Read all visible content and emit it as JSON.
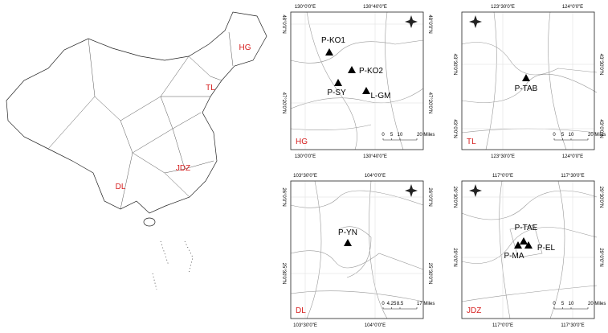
{
  "overview": {
    "labels": [
      "HG",
      "TL",
      "JDZ",
      "DL"
    ]
  },
  "panels": [
    {
      "label": "HG",
      "x_ticks": [
        "130°0'0\"E",
        "130°40'0\"E"
      ],
      "y_ticks": [
        "48°0'0\"N",
        "47°20'0\"N"
      ],
      "sites": [
        "P-KO1",
        "P-KO2",
        "P-SY",
        "L-GM"
      ],
      "scale": [
        "0",
        "5",
        "10",
        "20 Miles"
      ]
    },
    {
      "label": "TL",
      "x_ticks": [
        "123°30'0\"E",
        "124°0'0\"E"
      ],
      "y_ticks": [
        "43°30'0\"N",
        "43°0'0\"N"
      ],
      "sites": [
        "P-TAB"
      ],
      "scale": [
        "0",
        "5",
        "10",
        "20 Miles"
      ]
    },
    {
      "label": "DL",
      "x_ticks": [
        "103°30'0\"E",
        "104°0'0\"E"
      ],
      "y_ticks": [
        "26°0'0\"N",
        "25°30'0\"N"
      ],
      "sites": [
        "P-YN"
      ],
      "scale": [
        "0",
        "4.25",
        "8.5",
        "17 Miles"
      ]
    },
    {
      "label": "JDZ",
      "x_ticks": [
        "117°0'0\"E",
        "117°30'0\"E"
      ],
      "y_ticks": [
        "29°30'0\"N",
        "29°0'0\"N"
      ],
      "sites": [
        "P-TAE",
        "P-MA",
        "P-EL"
      ],
      "scale": [
        "0",
        "5",
        "10",
        "20 Miles"
      ]
    }
  ]
}
